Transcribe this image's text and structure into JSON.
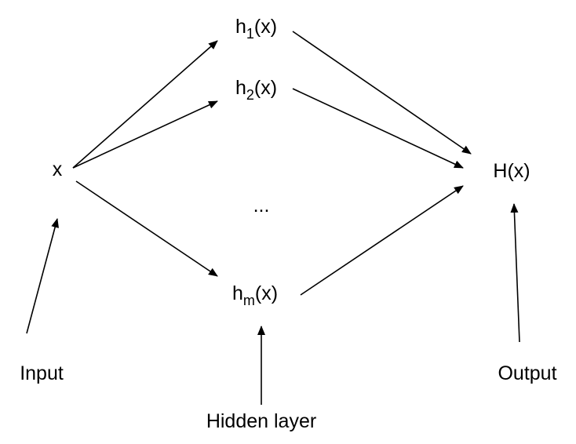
{
  "nodes": {
    "input": {
      "label": "x"
    },
    "h1": {
      "base": "h",
      "sub": "1",
      "arg": "(x)"
    },
    "h2": {
      "base": "h",
      "sub": "2",
      "arg": "(x)"
    },
    "ellipsis": {
      "label": "..."
    },
    "hm": {
      "base": "h",
      "sub": "m",
      "arg": "(x)"
    },
    "output": {
      "label": "H(x)"
    }
  },
  "captions": {
    "input": "Input",
    "hidden": "Hidden layer",
    "output": "Output"
  }
}
